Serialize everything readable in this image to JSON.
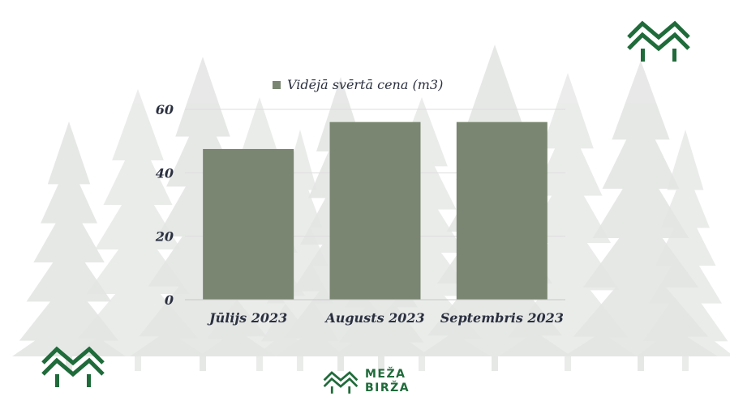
{
  "colors": {
    "bar": "#7a8671",
    "grid": "#dddddd",
    "axis_text": "#2b3040",
    "brand_green": "#1f6b3a",
    "tree_bg": "#e4e6e4"
  },
  "logos": {
    "corner_icon": "meza-birza-tree-logo-icon"
  },
  "brand": {
    "line1": "MEŽA",
    "line2": "BIRŽA"
  },
  "chart_data": {
    "type": "bar",
    "categories": [
      "Jūlijs 2023",
      "Augusts 2023",
      "Septembris 2023"
    ],
    "series": [
      {
        "name": "Vidējā svērtā cena (m3)",
        "values": [
          47.5,
          56,
          56
        ]
      }
    ],
    "ylim": [
      0,
      60
    ],
    "yticks": [
      0,
      20,
      40,
      60
    ],
    "grid": true,
    "legend": "top-center"
  }
}
